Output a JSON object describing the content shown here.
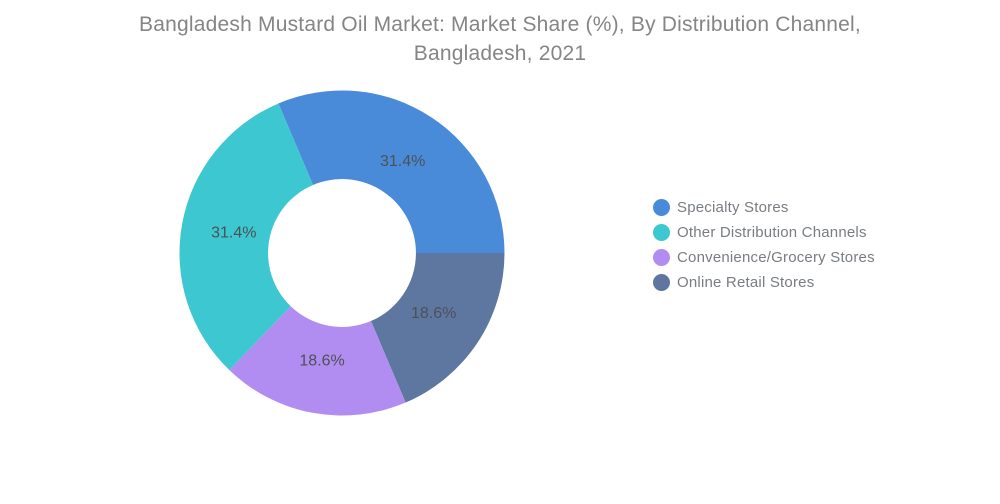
{
  "page": {
    "background_color": "#ffffff"
  },
  "header": {
    "title_lines": [
      "Bangladesh Mustard Oil Market: Market Share (%), By Distribution Channel,",
      "Bangladesh, 2021"
    ],
    "title_color": "#858585"
  },
  "chart_data": {
    "type": "pie",
    "subtype": "donut",
    "title": "Bangladesh Mustard Oil Market: Market Share (%), By Distribution Channel, Bangladesh, 2021",
    "categories": [
      "Specialty Stores",
      "Other Distribution Channels",
      "Convenience/Grocery Stores",
      "Online Retail Stores"
    ],
    "values": [
      31.4,
      31.4,
      18.6,
      18.6
    ],
    "labels": [
      "31.4%",
      "31.4%",
      "18.6%",
      "18.6%"
    ],
    "colors": [
      "#4a8bd9",
      "#3cc7d1",
      "#b18df2",
      "#5e77a1"
    ],
    "label_color": "#4d5156",
    "legend_position": "right",
    "start_angle_deg": -23.04,
    "clockwise_draw_order": [
      0,
      3,
      2,
      1
    ],
    "inner_radius_ratio": 0.455
  },
  "legend": {
    "items": [
      {
        "label": "Specialty Stores",
        "color": "#4a8bd9"
      },
      {
        "label": "Other Distribution Channels",
        "color": "#3cc7d1"
      },
      {
        "label": "Convenience/Grocery Stores",
        "color": "#b18df2"
      },
      {
        "label": "Online Retail Stores",
        "color": "#5e77a1"
      }
    ]
  }
}
